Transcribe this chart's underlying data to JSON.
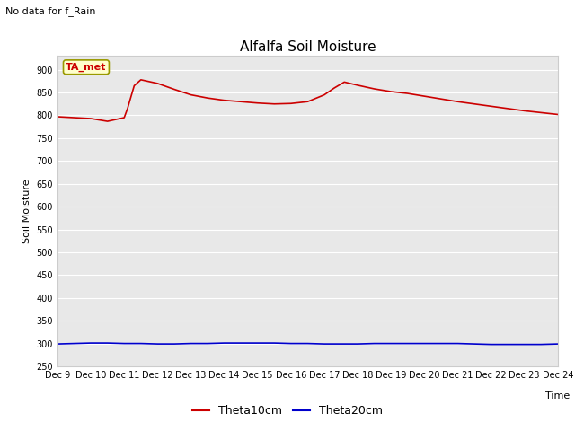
{
  "title": "Alfalfa Soil Moisture",
  "subtitle": "No data for f_Rain",
  "xlabel": "Time",
  "ylabel": "Soil Moisture",
  "ylim": [
    250,
    930
  ],
  "yticks": [
    250,
    300,
    350,
    400,
    450,
    500,
    550,
    600,
    650,
    700,
    750,
    800,
    850,
    900
  ],
  "bg_color": "#e8e8e8",
  "legend_items": [
    "Theta10cm",
    "Theta20cm"
  ],
  "legend_colors": [
    "#cc0000",
    "#0000cc"
  ],
  "annotation_text": "TA_met",
  "annotation_bg": "#ffffcc",
  "annotation_border": "#999900",
  "theta10_x": [
    0,
    0.5,
    1,
    1.5,
    2,
    2.1,
    2.3,
    2.5,
    3,
    3.5,
    4,
    4.5,
    5,
    5.5,
    6,
    6.5,
    7,
    7.5,
    8,
    8.3,
    8.6,
    9,
    9.5,
    10,
    10.5,
    11,
    11.5,
    12,
    12.5,
    13,
    13.5,
    14,
    14.5,
    15
  ],
  "theta10_y": [
    797,
    795,
    793,
    787,
    795,
    815,
    865,
    878,
    870,
    857,
    845,
    838,
    833,
    830,
    827,
    825,
    826,
    830,
    845,
    860,
    873,
    866,
    858,
    852,
    848,
    842,
    836,
    830,
    825,
    820,
    815,
    810,
    806,
    802
  ],
  "theta20_x": [
    0,
    0.5,
    1,
    1.5,
    2,
    2.5,
    3,
    3.5,
    4,
    4.5,
    5,
    5.5,
    6,
    6.5,
    7,
    7.5,
    8,
    8.5,
    9,
    9.5,
    10,
    10.5,
    11,
    11.5,
    12,
    12.5,
    13,
    13.5,
    14,
    14.5,
    15
  ],
  "theta20_y": [
    299,
    300,
    301,
    301,
    300,
    300,
    299,
    299,
    300,
    300,
    301,
    301,
    301,
    301,
    300,
    300,
    299,
    299,
    299,
    300,
    300,
    300,
    300,
    300,
    300,
    299,
    298,
    298,
    298,
    298,
    299
  ],
  "x_tick_labels": [
    "Dec 9",
    "Dec 10",
    "Dec 11",
    "Dec 12",
    "Dec 13",
    "Dec 14",
    "Dec 15",
    "Dec 16",
    "Dec 17",
    "Dec 18",
    "Dec 19",
    "Dec 20",
    "Dec 21",
    "Dec 22",
    "Dec 23",
    "Dec 24"
  ],
  "x_tick_positions": [
    0,
    1,
    2,
    3,
    4,
    5,
    6,
    7,
    8,
    9,
    10,
    11,
    12,
    13,
    14,
    15
  ],
  "title_fontsize": 11,
  "subtitle_fontsize": 8,
  "tick_fontsize": 7,
  "axis_label_fontsize": 8
}
